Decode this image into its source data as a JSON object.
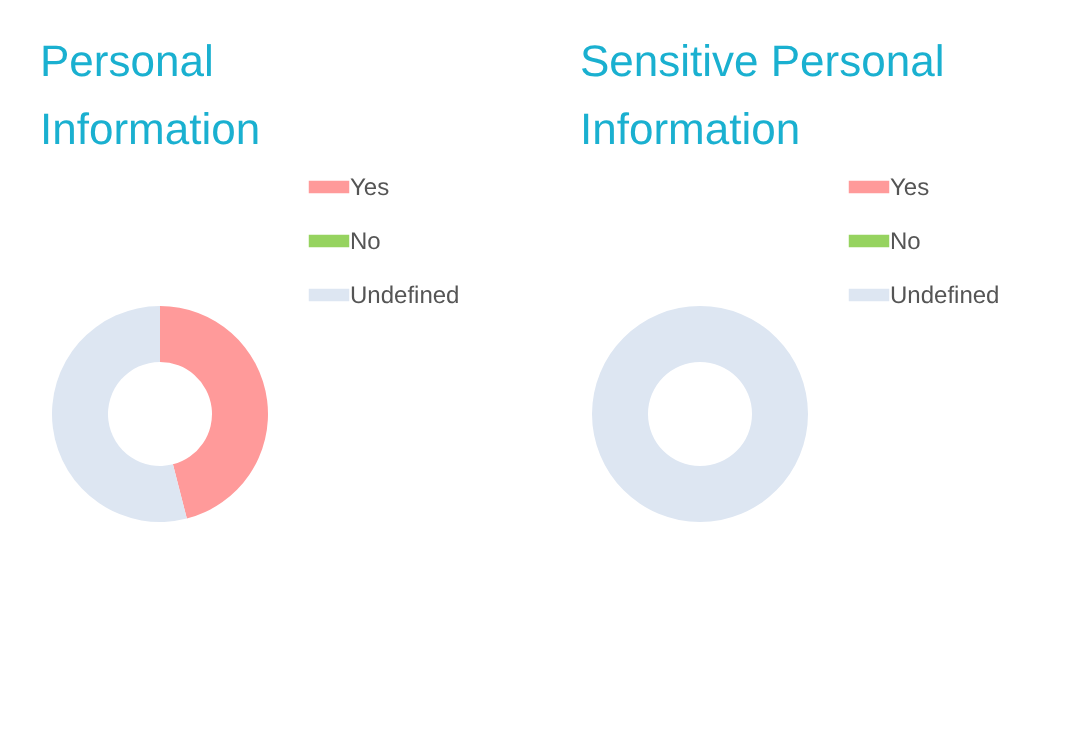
{
  "chart_data": [
    {
      "type": "donut",
      "title": "Personal Information",
      "categories": [
        "Yes",
        "No",
        "Undefined"
      ],
      "values": [
        46,
        0,
        54
      ],
      "colors": [
        "#ff9a9a",
        "#96d35f",
        "#dde6f2"
      ],
      "legend": "right"
    },
    {
      "type": "donut",
      "title": "Sensitive Personal Information",
      "categories": [
        "Yes",
        "No",
        "Undefined"
      ],
      "values": [
        0,
        0,
        100
      ],
      "colors": [
        "#ff9a9a",
        "#96d35f",
        "#dde6f2"
      ],
      "legend": "right"
    }
  ]
}
